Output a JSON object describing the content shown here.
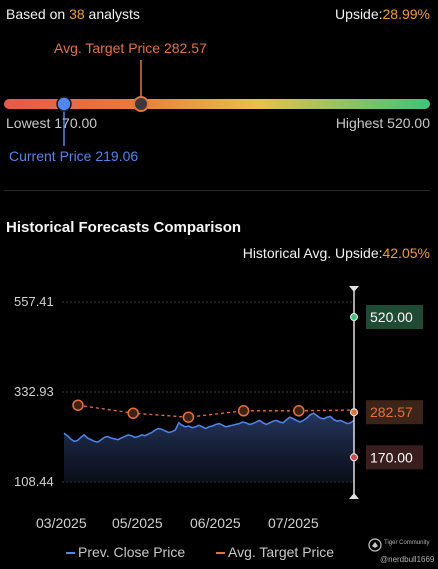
{
  "analyst_summary": {
    "based_on_prefix": "Based on",
    "analyst_count": "38",
    "based_on_suffix": "analysts",
    "upside_label": "Upside:",
    "upside_value": "28.99%"
  },
  "price_range": {
    "avg_target_label": "Avg. Target Price 282.57",
    "lowest_label": "Lowest 170.00",
    "highest_label": "Highest 520.00",
    "current_label": "Current Price 219.06",
    "lowest": 170.0,
    "highest": 520.0,
    "current": 219.06,
    "avg_target": 282.57,
    "colors": {
      "low": "#e8584a",
      "mid": "#e8c24a",
      "high": "#3ec47a",
      "current": "#4f86f0",
      "target": "#e8703a"
    }
  },
  "historical": {
    "title": "Historical Forecasts Comparison",
    "avg_upside_label": "Historical Avg. Upside:",
    "avg_upside_value": "42.05%"
  },
  "chart_data": {
    "type": "line",
    "y_ticks": [
      "557.41",
      "332.93",
      "108.44"
    ],
    "ylim": [
      108.44,
      557.41
    ],
    "x_ticks": [
      "03/2025",
      "05/2025",
      "06/2025",
      "07/2025"
    ],
    "series": [
      {
        "name": "Prev. Close Price",
        "color": "#4f86f0",
        "values": [
          230,
          224,
          216,
          210,
          212,
          220,
          226,
          218,
          214,
          210,
          208,
          214,
          220,
          222,
          218,
          216,
          214,
          218,
          222,
          226,
          224,
          220,
          222,
          226,
          224,
          228,
          232,
          238,
          242,
          240,
          236,
          232,
          234,
          238,
          256,
          250,
          246,
          248,
          244,
          246,
          250,
          246,
          242,
          246,
          248,
          252,
          254,
          250,
          246,
          248,
          250,
          252,
          254,
          258,
          256,
          252,
          254,
          258,
          262,
          256,
          252,
          256,
          260,
          262,
          258,
          256,
          264,
          270,
          266,
          262,
          258,
          262,
          268,
          276,
          280,
          274,
          268,
          266,
          270,
          272,
          264,
          260,
          262,
          258,
          254,
          256,
          262
        ]
      },
      {
        "name": "Avg. Target Price",
        "color": "#e8703a",
        "values": [
          300,
          280,
          270,
          286,
          286,
          288
        ]
      }
    ],
    "markers": [
      {
        "label": "520.00",
        "value": 520.0,
        "color": "#2d8a4e"
      },
      {
        "label": "282.57",
        "value": 282.57,
        "color": "#e8703a"
      },
      {
        "label": "170.00",
        "value": 170.0,
        "color": "#d84a4a"
      }
    ]
  },
  "legend": {
    "prev_close": "Prev. Close Price",
    "avg_target": "Avg. Target Price"
  },
  "watermark": {
    "community": "Tiger Community",
    "user": "@nerdbull1669"
  }
}
